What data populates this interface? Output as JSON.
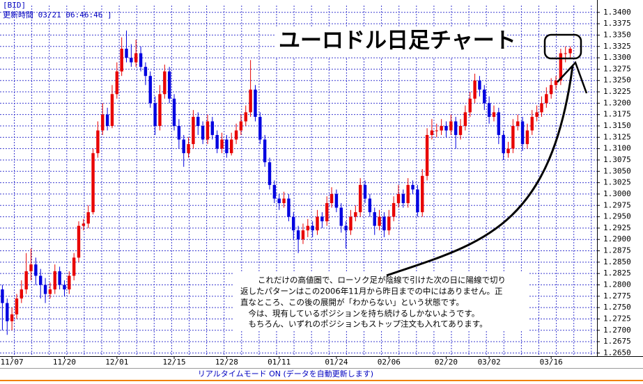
{
  "chart_data": {
    "type": "candlestick",
    "source_label": "[BID]",
    "update_time": "更新時間 03/21 06:46:46 ]",
    "title": "ユーロドル日足チャート",
    "annotation": [
      "これだけの高値圏で、ローソク足が陰線で引けた次の日に陽線で切り",
      "返したパターンはこの2006年11月から昨日までの中にはありません。正",
      "直なところ、この後の展開が「わからない」という状態です。",
      "　今は、現有しているポジションを持ち続けるしかないようです。",
      "　もちろん、いずれのポジションもストップ注文も入れてあります。"
    ],
    "footer": "リアルタイムモード ON (データを自動更新します)",
    "up_color": "#e80000",
    "down_color": "#0000e0",
    "grid": true,
    "grid_color": "#3a3ad0",
    "ylim": [
      1.2643,
      1.3415
    ],
    "yticks": [
      {
        "value": 1.265,
        "label": "1.2650"
      },
      {
        "value": 1.2675,
        "label": "1.2675"
      },
      {
        "value": 1.27,
        "label": "1.2700"
      },
      {
        "value": 1.2725,
        "label": "1.2725"
      },
      {
        "value": 1.275,
        "label": "1.2750"
      },
      {
        "value": 1.2775,
        "label": "1.2775"
      },
      {
        "value": 1.28,
        "label": "1.2800"
      },
      {
        "value": 1.2825,
        "label": "1.2825"
      },
      {
        "value": 1.285,
        "label": "1.2850"
      },
      {
        "value": 1.2875,
        "label": "1.2875"
      },
      {
        "value": 1.29,
        "label": "1.2900"
      },
      {
        "value": 1.2925,
        "label": "1.2925"
      },
      {
        "value": 1.295,
        "label": "1.2950"
      },
      {
        "value": 1.2975,
        "label": "1.2975"
      },
      {
        "value": 1.3,
        "label": "1.3000"
      },
      {
        "value": 1.3025,
        "label": "1.3025"
      },
      {
        "value": 1.305,
        "label": "1.3050"
      },
      {
        "value": 1.3075,
        "label": "1.3075"
      },
      {
        "value": 1.31,
        "label": "1.3100"
      },
      {
        "value": 1.3125,
        "label": "1.3125"
      },
      {
        "value": 1.315,
        "label": "1.3150"
      },
      {
        "value": 1.3175,
        "label": "1.3175"
      },
      {
        "value": 1.32,
        "label": "1.3200"
      },
      {
        "value": 1.3225,
        "label": "1.3225"
      },
      {
        "value": 1.325,
        "label": "1.3250"
      },
      {
        "value": 1.3275,
        "label": "1.3275"
      },
      {
        "value": 1.33,
        "label": "1.3300"
      },
      {
        "value": 1.3325,
        "label": "1.3325"
      },
      {
        "value": 1.335,
        "label": "1.3350"
      },
      {
        "value": 1.3375,
        "label": "1.3375"
      },
      {
        "value": 1.34,
        "label": "1.3400"
      }
    ],
    "categories": [
      null,
      null,
      "11/07",
      null,
      null,
      null,
      null,
      null,
      null,
      null,
      null,
      null,
      null,
      "11/20",
      null,
      null,
      null,
      null,
      null,
      null,
      null,
      null,
      null,
      null,
      "12/01",
      null,
      null,
      null,
      null,
      null,
      null,
      null,
      null,
      null,
      null,
      null,
      "12/15",
      null,
      null,
      null,
      null,
      null,
      null,
      null,
      null,
      null,
      null,
      "12/28",
      null,
      null,
      null,
      null,
      null,
      null,
      null,
      null,
      null,
      null,
      "01/11",
      null,
      null,
      null,
      null,
      null,
      null,
      null,
      null,
      null,
      null,
      null,
      "01/24",
      null,
      null,
      null,
      null,
      null,
      null,
      null,
      null,
      null,
      null,
      "02/06",
      null,
      null,
      null,
      null,
      null,
      null,
      null,
      null,
      null,
      null,
      null,
      "02/20",
      null,
      null,
      null,
      null,
      null,
      null,
      null,
      null,
      "03/02",
      null,
      null,
      null,
      null,
      null,
      null,
      null,
      null,
      null,
      null,
      null,
      null,
      "03/16",
      null,
      null,
      null,
      null
    ],
    "ohlc": [
      [
        1.279,
        1.28,
        1.27,
        1.276
      ],
      [
        1.276,
        1.277,
        1.269,
        1.272
      ],
      [
        1.272,
        1.275,
        1.27,
        1.2735
      ],
      [
        1.2735,
        1.278,
        1.2725,
        1.277
      ],
      [
        1.277,
        1.281,
        1.276,
        1.279
      ],
      [
        1.279,
        1.287,
        1.278,
        1.283
      ],
      [
        1.283,
        1.288,
        1.281,
        1.2845
      ],
      [
        1.2845,
        1.286,
        1.28,
        1.282
      ],
      [
        1.282,
        1.2835,
        1.277,
        1.28
      ],
      [
        1.28,
        1.2815,
        1.276,
        1.278
      ],
      [
        1.278,
        1.2805,
        1.277,
        1.279
      ],
      [
        1.279,
        1.2845,
        1.278,
        1.283
      ],
      [
        1.283,
        1.284,
        1.279,
        1.28
      ],
      [
        1.28,
        1.281,
        1.2775,
        1.279
      ],
      [
        1.279,
        1.283,
        1.278,
        1.282
      ],
      [
        1.282,
        1.287,
        1.281,
        1.286
      ],
      [
        1.286,
        1.294,
        1.285,
        1.293
      ],
      [
        1.293,
        1.2945,
        1.292,
        1.2935
      ],
      [
        1.2935,
        1.2975,
        1.2925,
        1.296
      ],
      [
        1.296,
        1.31,
        1.2955,
        1.309
      ],
      [
        1.309,
        1.316,
        1.308,
        1.314
      ],
      [
        1.314,
        1.32,
        1.313,
        1.3175
      ],
      [
        1.3175,
        1.319,
        1.314,
        1.315
      ],
      [
        1.315,
        1.324,
        1.3145,
        1.322
      ],
      [
        1.322,
        1.329,
        1.321,
        1.327
      ],
      [
        1.327,
        1.3345,
        1.326,
        1.332
      ],
      [
        1.332,
        1.336,
        1.329,
        1.33
      ],
      [
        1.33,
        1.333,
        1.328,
        1.329
      ],
      [
        1.329,
        1.334,
        1.328,
        1.331
      ],
      [
        1.331,
        1.3325,
        1.327,
        1.328
      ],
      [
        1.328,
        1.329,
        1.324,
        1.326
      ],
      [
        1.326,
        1.327,
        1.319,
        1.32
      ],
      [
        1.32,
        1.3215,
        1.313,
        1.315
      ],
      [
        1.315,
        1.324,
        1.314,
        1.322
      ],
      [
        1.322,
        1.3285,
        1.321,
        1.327
      ],
      [
        1.327,
        1.328,
        1.32,
        1.321
      ],
      [
        1.321,
        1.322,
        1.314,
        1.315
      ],
      [
        1.315,
        1.3165,
        1.31,
        1.312
      ],
      [
        1.312,
        1.313,
        1.306,
        1.309
      ],
      [
        1.309,
        1.3125,
        1.308,
        1.311
      ],
      [
        1.311,
        1.3185,
        1.31,
        1.317
      ],
      [
        1.317,
        1.318,
        1.313,
        1.315
      ],
      [
        1.315,
        1.316,
        1.311,
        1.312
      ],
      [
        1.312,
        1.3175,
        1.311,
        1.316
      ],
      [
        1.316,
        1.317,
        1.312,
        1.313
      ],
      [
        1.313,
        1.314,
        1.309,
        1.31
      ],
      [
        1.31,
        1.3135,
        1.309,
        1.312
      ],
      [
        1.312,
        1.313,
        1.308,
        1.309
      ],
      [
        1.309,
        1.3135,
        1.3085,
        1.312
      ],
      [
        1.312,
        1.3155,
        1.311,
        1.314
      ],
      [
        1.314,
        1.3175,
        1.313,
        1.316
      ],
      [
        1.316,
        1.3195,
        1.315,
        1.318
      ],
      [
        1.318,
        1.3295,
        1.317,
        1.323
      ],
      [
        1.323,
        1.324,
        1.316,
        1.317
      ],
      [
        1.317,
        1.318,
        1.311,
        1.312
      ],
      [
        1.312,
        1.313,
        1.306,
        1.307
      ],
      [
        1.307,
        1.308,
        1.301,
        1.302
      ],
      [
        1.302,
        1.303,
        1.298,
        1.299
      ],
      [
        1.299,
        1.3,
        1.2965,
        1.298
      ],
      [
        1.298,
        1.3005,
        1.297,
        1.299
      ],
      [
        1.299,
        1.3,
        1.294,
        1.295
      ],
      [
        1.295,
        1.296,
        1.29,
        1.292
      ],
      [
        1.292,
        1.293,
        1.287,
        1.29
      ],
      [
        1.29,
        1.2935,
        1.289,
        1.292
      ],
      [
        1.292,
        1.2945,
        1.2905,
        1.293
      ],
      [
        1.293,
        1.294,
        1.2905,
        1.292
      ],
      [
        1.292,
        1.2965,
        1.291,
        1.295
      ],
      [
        1.295,
        1.296,
        1.2925,
        1.294
      ],
      [
        1.294,
        1.2995,
        1.293,
        1.298
      ],
      [
        1.298,
        1.3015,
        1.297,
        1.3
      ],
      [
        1.3,
        1.301,
        1.296,
        1.297
      ],
      [
        1.297,
        1.298,
        1.2915,
        1.293
      ],
      [
        1.293,
        1.294,
        1.288,
        1.292
      ],
      [
        1.292,
        1.2965,
        1.291,
        1.295
      ],
      [
        1.295,
        1.2975,
        1.294,
        1.296
      ],
      [
        1.296,
        1.3035,
        1.295,
        1.302
      ],
      [
        1.302,
        1.303,
        1.298,
        1.299
      ],
      [
        1.299,
        1.3,
        1.295,
        1.296
      ],
      [
        1.296,
        1.297,
        1.291,
        1.293
      ],
      [
        1.293,
        1.2965,
        1.292,
        1.295
      ],
      [
        1.295,
        1.296,
        1.2905,
        1.292
      ],
      [
        1.292,
        1.2965,
        1.291,
        1.295
      ],
      [
        1.295,
        1.2995,
        1.294,
        1.298
      ],
      [
        1.298,
        1.302,
        1.297,
        1.3
      ],
      [
        1.3,
        1.301,
        1.297,
        1.298
      ],
      [
        1.298,
        1.3035,
        1.297,
        1.302
      ],
      [
        1.302,
        1.303,
        1.3,
        1.301
      ],
      [
        1.301,
        1.302,
        1.295,
        1.296
      ],
      [
        1.296,
        1.3055,
        1.295,
        1.304
      ],
      [
        1.304,
        1.3145,
        1.303,
        1.313
      ],
      [
        1.313,
        1.3165,
        1.312,
        1.314
      ],
      [
        1.314,
        1.3155,
        1.3125,
        1.314
      ],
      [
        1.314,
        1.3165,
        1.313,
        1.315
      ],
      [
        1.315,
        1.316,
        1.3125,
        1.314
      ],
      [
        1.314,
        1.3175,
        1.313,
        1.316
      ],
      [
        1.316,
        1.317,
        1.31,
        1.313
      ],
      [
        1.313,
        1.3165,
        1.312,
        1.315
      ],
      [
        1.315,
        1.3195,
        1.314,
        1.318
      ],
      [
        1.318,
        1.3225,
        1.317,
        1.321
      ],
      [
        1.321,
        1.3265,
        1.32,
        1.325
      ],
      [
        1.325,
        1.326,
        1.3215,
        1.323
      ],
      [
        1.323,
        1.324,
        1.3185,
        1.32
      ],
      [
        1.32,
        1.3215,
        1.3155,
        1.317
      ],
      [
        1.317,
        1.3195,
        1.316,
        1.318
      ],
      [
        1.318,
        1.319,
        1.311,
        1.313
      ],
      [
        1.313,
        1.314,
        1.3075,
        1.309
      ],
      [
        1.309,
        1.3115,
        1.308,
        1.31
      ],
      [
        1.31,
        1.3165,
        1.309,
        1.315
      ],
      [
        1.315,
        1.3175,
        1.314,
        1.316
      ],
      [
        1.316,
        1.317,
        1.3095,
        1.311
      ],
      [
        1.311,
        1.3155,
        1.31,
        1.314
      ],
      [
        1.314,
        1.3185,
        1.313,
        1.317
      ],
      [
        1.317,
        1.3195,
        1.316,
        1.318
      ],
      [
        1.318,
        1.3215,
        1.317,
        1.32
      ],
      [
        1.32,
        1.3235,
        1.319,
        1.322
      ],
      [
        1.322,
        1.3255,
        1.321,
        1.324
      ],
      [
        1.324,
        1.326,
        1.323,
        1.325
      ],
      [
        1.325,
        1.332,
        1.324,
        1.331
      ],
      [
        1.331,
        1.3325,
        1.329,
        1.331
      ],
      [
        1.331,
        1.3325,
        1.33,
        1.332
      ]
    ]
  }
}
